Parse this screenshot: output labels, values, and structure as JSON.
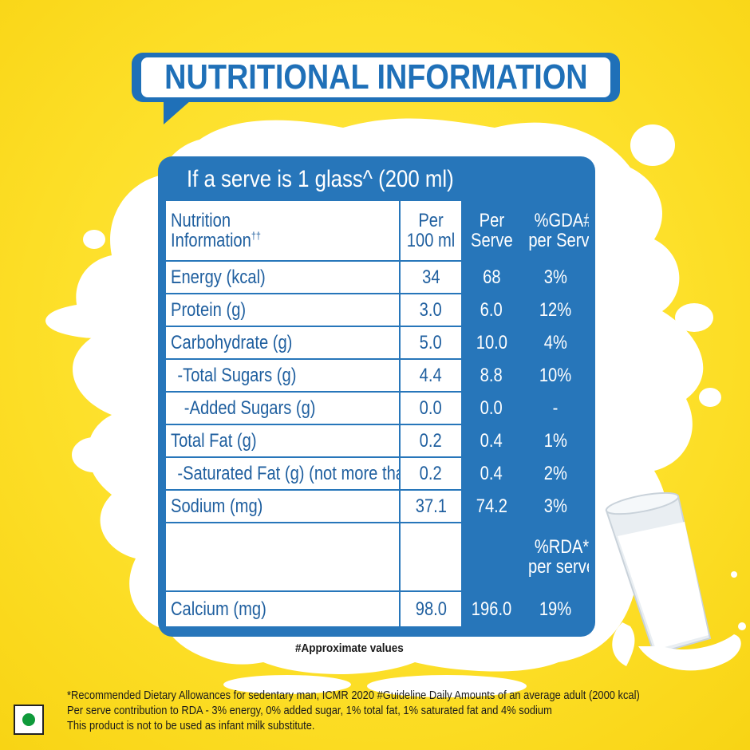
{
  "title": "NUTRITIONAL INFORMATION",
  "serve_text": "If a serve is 1 glass^ (200 ml)",
  "header": {
    "name_line1": "Nutrition",
    "name_line2": "Information",
    "name_sup": "††",
    "per100_line1": "Per",
    "per100_line2": "100 ml",
    "serve_line1": "Per",
    "serve_line2": "Serve",
    "gda_line1": "%GDA#",
    "gda_line2": "per Serve"
  },
  "rows": [
    {
      "name": "Energy (kcal)",
      "per100": "34",
      "serve": "68",
      "pct": "3%"
    },
    {
      "name": "Protein (g)",
      "per100": "3.0",
      "serve": "6.0",
      "pct": "12%"
    },
    {
      "name": "Carbohydrate (g)",
      "per100": "5.0",
      "serve": "10.0",
      "pct": "4%"
    },
    {
      "name": "-Total Sugars (g)",
      "per100": "4.4",
      "serve": "8.8",
      "pct": "10%"
    },
    {
      "name": "-Added Sugars (g)",
      "per100": "0.0",
      "serve": "0.0",
      "pct": "-"
    },
    {
      "name": "Total Fat (g)",
      "per100": "0.2",
      "serve": "0.4",
      "pct": "1%"
    },
    {
      "name": "-Saturated Fat (g) (not more than)",
      "per100": "0.2",
      "serve": "0.4",
      "pct": "2%"
    },
    {
      "name": "Sodium (mg)",
      "per100": "37.1",
      "serve": "74.2",
      "pct": "3%"
    }
  ],
  "rda_header": {
    "line1": "%RDA*",
    "line2": "per serve"
  },
  "calcium": {
    "name": "Calcium (mg)",
    "per100": "98.0",
    "serve": "196.0",
    "pct": "19%"
  },
  "approx_note": "#Approximate values",
  "footnotes": [
    "*Recommended Dietary Allowances for sedentary man, ICMR 2020 #Guideline Daily Amounts of an average adult (2000 kcal)",
    "Per serve contribution to RDA - 3% energy, 0% added sugar, 1% total fat, 1% saturated fat and 4% sodium",
    "This product is not to be used as infant milk substitute."
  ],
  "colors": {
    "brand_blue": "#2776ba",
    "background_yellow": "#fde02a",
    "veg_green": "#0f9a3b"
  }
}
